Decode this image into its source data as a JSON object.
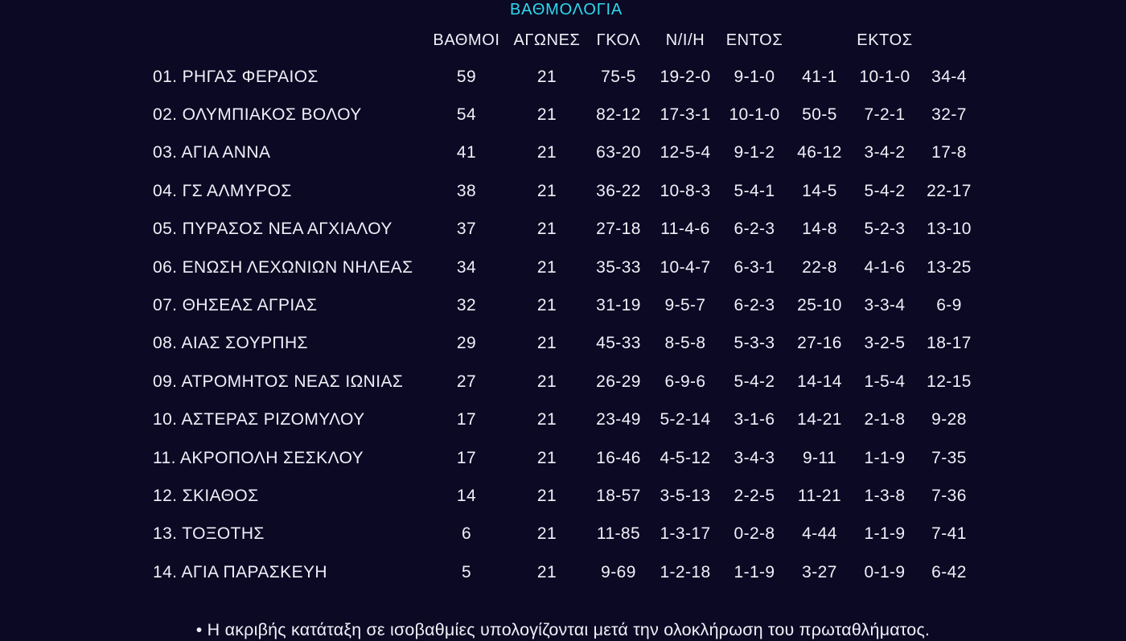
{
  "title": "ΒΑΘΜΟΛΟΓΙΑ",
  "colors": {
    "background": "#0b0923",
    "title_accent": "#2fd8ee",
    "text": "#f1eff8"
  },
  "table": {
    "headers": {
      "team": "",
      "points": "ΒΑΘΜΟΙ",
      "games": "ΑΓΩΝΕΣ",
      "goals": "ΓΚΟΛ",
      "wdl": "Ν/Ι/Η",
      "home": "ΕΝΤΟΣ",
      "home_goals": "",
      "away": "ΕΚΤΟΣ",
      "away_goals": ""
    },
    "rows": [
      {
        "team": "01. ΡΗΓΑΣ ΦΕΡΑΙΟΣ",
        "points": "59",
        "games": "21",
        "goals": "75-5",
        "wdl": "19-2-0",
        "home_wdl": "9-1-0",
        "home_goals": "41-1",
        "away_wdl": "10-1-0",
        "away_goals": "34-4"
      },
      {
        "team": "02. ΟΛΥΜΠΙΑΚΟΣ ΒΟΛΟΥ",
        "points": "54",
        "games": "21",
        "goals": "82-12",
        "wdl": "17-3-1",
        "home_wdl": "10-1-0",
        "home_goals": "50-5",
        "away_wdl": "7-2-1",
        "away_goals": "32-7"
      },
      {
        "team": "03. ΑΓΙΑ ΑΝΝΑ",
        "points": "41",
        "games": "21",
        "goals": "63-20",
        "wdl": "12-5-4",
        "home_wdl": "9-1-2",
        "home_goals": "46-12",
        "away_wdl": "3-4-2",
        "away_goals": "17-8"
      },
      {
        "team": "04. ΓΣ ΑΛΜΥΡΟΣ",
        "points": "38",
        "games": "21",
        "goals": "36-22",
        "wdl": "10-8-3",
        "home_wdl": "5-4-1",
        "home_goals": "14-5",
        "away_wdl": "5-4-2",
        "away_goals": "22-17"
      },
      {
        "team": "05. ΠΥΡΑΣΟΣ ΝΕΑ ΑΓΧΙΑΛΟΥ",
        "points": "37",
        "games": "21",
        "goals": "27-18",
        "wdl": "11-4-6",
        "home_wdl": "6-2-3",
        "home_goals": "14-8",
        "away_wdl": "5-2-3",
        "away_goals": "13-10"
      },
      {
        "team": "06. ΕΝΩΣΗ ΛΕΧΩΝΙΩΝ ΝΗΛΕΑΣ",
        "points": "34",
        "games": "21",
        "goals": "35-33",
        "wdl": "10-4-7",
        "home_wdl": "6-3-1",
        "home_goals": "22-8",
        "away_wdl": "4-1-6",
        "away_goals": "13-25"
      },
      {
        "team": "07. ΘΗΣΕΑΣ ΑΓΡΙΑΣ",
        "points": "32",
        "games": "21",
        "goals": "31-19",
        "wdl": "9-5-7",
        "home_wdl": "6-2-3",
        "home_goals": "25-10",
        "away_wdl": "3-3-4",
        "away_goals": "6-9"
      },
      {
        "team": "08. ΑΙΑΣ ΣΟΥΡΠΗΣ",
        "points": "29",
        "games": "21",
        "goals": "45-33",
        "wdl": "8-5-8",
        "home_wdl": "5-3-3",
        "home_goals": "27-16",
        "away_wdl": "3-2-5",
        "away_goals": "18-17"
      },
      {
        "team": "09. ΑΤΡΟΜΗΤΟΣ ΝΕΑΣ ΙΩΝΙΑΣ",
        "points": "27",
        "games": "21",
        "goals": "26-29",
        "wdl": "6-9-6",
        "home_wdl": "5-4-2",
        "home_goals": "14-14",
        "away_wdl": "1-5-4",
        "away_goals": "12-15"
      },
      {
        "team": "10. ΑΣΤΕΡΑΣ ΡΙΖΟΜΥΛΟΥ",
        "points": "17",
        "games": "21",
        "goals": "23-49",
        "wdl": "5-2-14",
        "home_wdl": "3-1-6",
        "home_goals": "14-21",
        "away_wdl": "2-1-8",
        "away_goals": "9-28"
      },
      {
        "team": "11. ΑΚΡΟΠΟΛΗ ΣΕΣΚΛΟΥ",
        "points": "17",
        "games": "21",
        "goals": "16-46",
        "wdl": "4-5-12",
        "home_wdl": "3-4-3",
        "home_goals": "9-11",
        "away_wdl": "1-1-9",
        "away_goals": "7-35"
      },
      {
        "team": "12. ΣΚΙΑΘΟΣ",
        "points": "14",
        "games": "21",
        "goals": "18-57",
        "wdl": "3-5-13",
        "home_wdl": "2-2-5",
        "home_goals": "11-21",
        "away_wdl": "1-3-8",
        "away_goals": "7-36"
      },
      {
        "team": "13. ΤΟΞΟΤΗΣ",
        "points": "6",
        "games": "21",
        "goals": "11-85",
        "wdl": "1-3-17",
        "home_wdl": "0-2-8",
        "home_goals": "4-44",
        "away_wdl": "1-1-9",
        "away_goals": "7-41"
      },
      {
        "team": "14. ΑΓΙΑ ΠΑΡΑΣΚΕΥΗ",
        "points": "5",
        "games": "21",
        "goals": "9-69",
        "wdl": "1-2-18",
        "home_wdl": "1-1-9",
        "home_goals": "3-27",
        "away_wdl": "0-1-9",
        "away_goals": "6-42"
      }
    ]
  },
  "footer": "• Η ακριβής κατάταξη σε ισοβαθμίες υπολογίζονται μετά την ολοκλήρωση του πρωταθλήματος."
}
